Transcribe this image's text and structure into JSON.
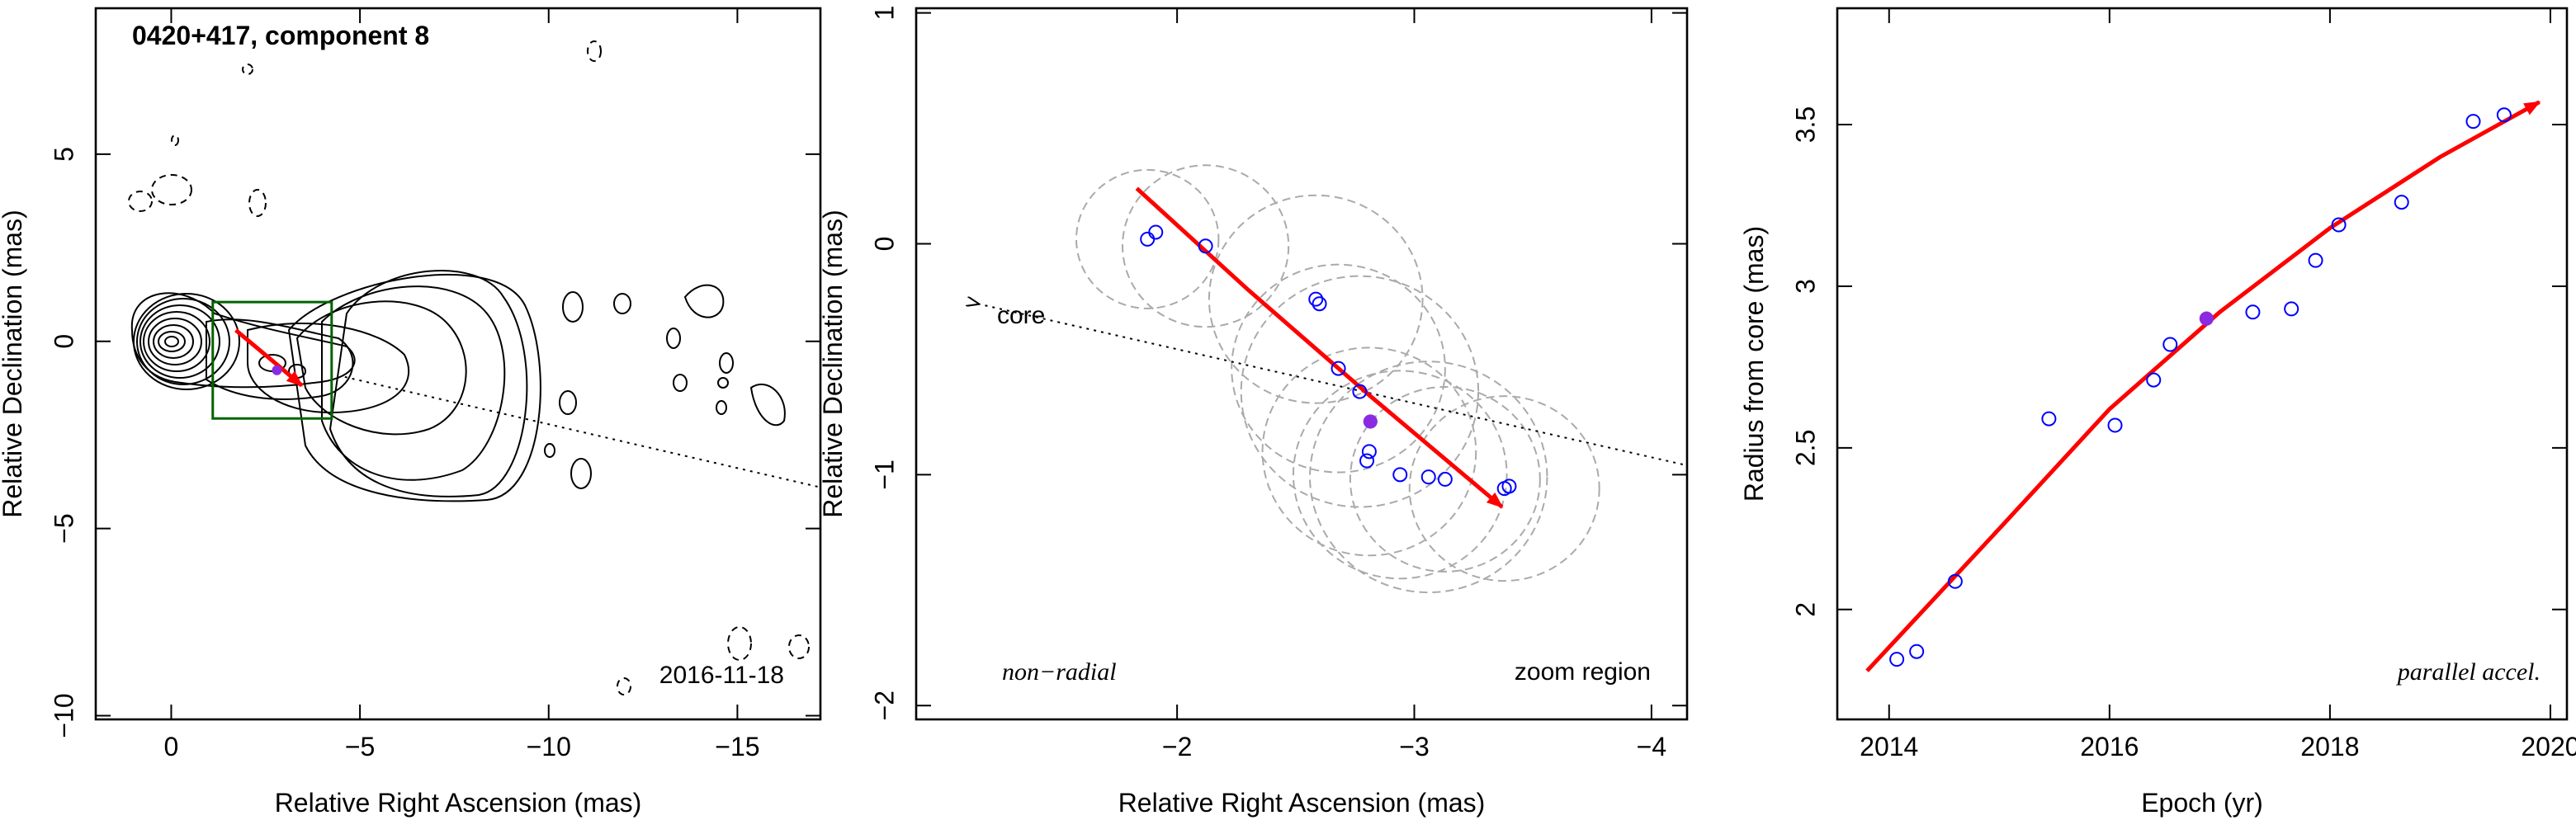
{
  "chart_data": [
    {
      "type": "contour-map",
      "title": "0420+417, component 8",
      "annotation": "2016-11-18",
      "xlabel": "Relative Right Ascension (mas)",
      "ylabel": "Relative Declination (mas)",
      "xlim": [
        2,
        -17.2
      ],
      "ylim": [
        -10.1,
        8.9
      ],
      "xticks": [
        0,
        {
          "value": -5,
          "label": "−5"
        },
        {
          "value": -10,
          "label": "−10"
        },
        {
          "value": -15,
          "label": "−15"
        }
      ],
      "yticks": [
        {
          "value": -10,
          "label": "−10"
        },
        {
          "value": -5,
          "label": "−5"
        },
        0,
        5
      ],
      "trajectory": {
        "x": [
          -1.71,
          -2.6,
          -3.46
        ],
        "y": [
          0.3,
          -0.45,
          -1.18
        ],
        "color": "#ff0000"
      },
      "component": {
        "x": -2.8,
        "y": -0.77,
        "color": "#8a2be2"
      },
      "zoom_box": {
        "x": [
          -1.1,
          -4.25
        ],
        "y": [
          1.05,
          -2.06
        ],
        "color": "#006400"
      },
      "direction": {
        "x": [
          -4.6,
          -17.2
        ],
        "y": [
          -0.95,
          -3.9
        ]
      }
    },
    {
      "type": "scatter",
      "annotations": [
        "core",
        "non−radial",
        "zoom region"
      ],
      "xlabel": "Relative Right Ascension (mas)",
      "ylabel": "Relative Declination (mas)",
      "xlim": [
        -0.9,
        -4.15
      ],
      "ylim": [
        -2.06,
        1.02
      ],
      "xticks": [
        {
          "value": -2,
          "label": "−2"
        },
        {
          "value": -3,
          "label": "−3"
        },
        {
          "value": -4,
          "label": "−4"
        }
      ],
      "yticks": [
        {
          "value": -2,
          "label": "−2"
        },
        {
          "value": -1,
          "label": "−1"
        },
        0,
        1
      ],
      "points": {
        "x": [
          -1.875,
          -1.91,
          -2.12,
          -2.585,
          -2.6,
          -2.68,
          -2.77,
          -2.81,
          -2.8,
          -2.94,
          -3.06,
          -3.13,
          -3.38,
          -3.4
        ],
        "y": [
          0.02,
          0.05,
          -0.01,
          -0.24,
          -0.26,
          -0.54,
          -0.64,
          -0.9,
          -0.94,
          -1.0,
          -1.01,
          -1.02,
          -1.06,
          -1.05
        ],
        "color": "#0000ff"
      },
      "filled_point": {
        "x": -2.815,
        "y": -0.77,
        "color": "#8a2be2"
      },
      "beams": {
        "x": [
          -1.875,
          -2.12,
          -2.585,
          -2.68,
          -2.77,
          -2.81,
          -2.94,
          -3.06,
          -3.13,
          -3.38
        ],
        "y": [
          0.02,
          -0.01,
          -0.24,
          -0.54,
          -0.64,
          -0.9,
          -1.0,
          -1.01,
          -1.02,
          -1.06
        ],
        "r": [
          0.3,
          0.35,
          0.45,
          0.45,
          0.5,
          0.45,
          0.45,
          0.5,
          0.4,
          0.4
        ],
        "color": "#aaaaaa"
      },
      "trajectory": {
        "x": [
          -1.83,
          -2.3,
          -2.815,
          -3.37
        ],
        "y": [
          0.24,
          -0.2,
          -0.66,
          -1.14
        ],
        "color": "#ff0000"
      },
      "direction": {
        "x": [
          -1.16,
          -4.15
        ],
        "y": [
          -0.26,
          -0.96
        ]
      }
    },
    {
      "type": "scatter",
      "annotation": "parallel accel.",
      "xlabel": "Epoch (yr)",
      "ylabel": "Radius from core (mas)",
      "xlim": [
        2013.53,
        2020.15
      ],
      "ylim": [
        1.66,
        3.86
      ],
      "xticks": [
        2014,
        2016,
        2018,
        2020
      ],
      "yticks": [
        2,
        2.5,
        3,
        3.5
      ],
      "points": {
        "x": [
          2014.07,
          2014.25,
          2014.6,
          2015.45,
          2016.05,
          2016.4,
          2016.55,
          2017.3,
          2017.65,
          2017.87,
          2018.08,
          2018.65,
          2019.3,
          2019.58
        ],
        "y": [
          1.846,
          1.87,
          2.087,
          2.59,
          2.57,
          2.71,
          2.82,
          2.92,
          2.93,
          3.08,
          3.19,
          3.26,
          3.51,
          3.53
        ],
        "color": "#0000ff"
      },
      "filled_point": {
        "x": 2016.88,
        "y": 2.9,
        "color": "#8a2be2"
      },
      "trajectory": {
        "x": [
          2013.8,
          2015,
          2016,
          2017,
          2018,
          2019,
          2019.9
        ],
        "y": [
          1.81,
          2.25,
          2.62,
          2.92,
          3.18,
          3.4,
          3.57
        ],
        "color": "#ff0000"
      }
    }
  ]
}
